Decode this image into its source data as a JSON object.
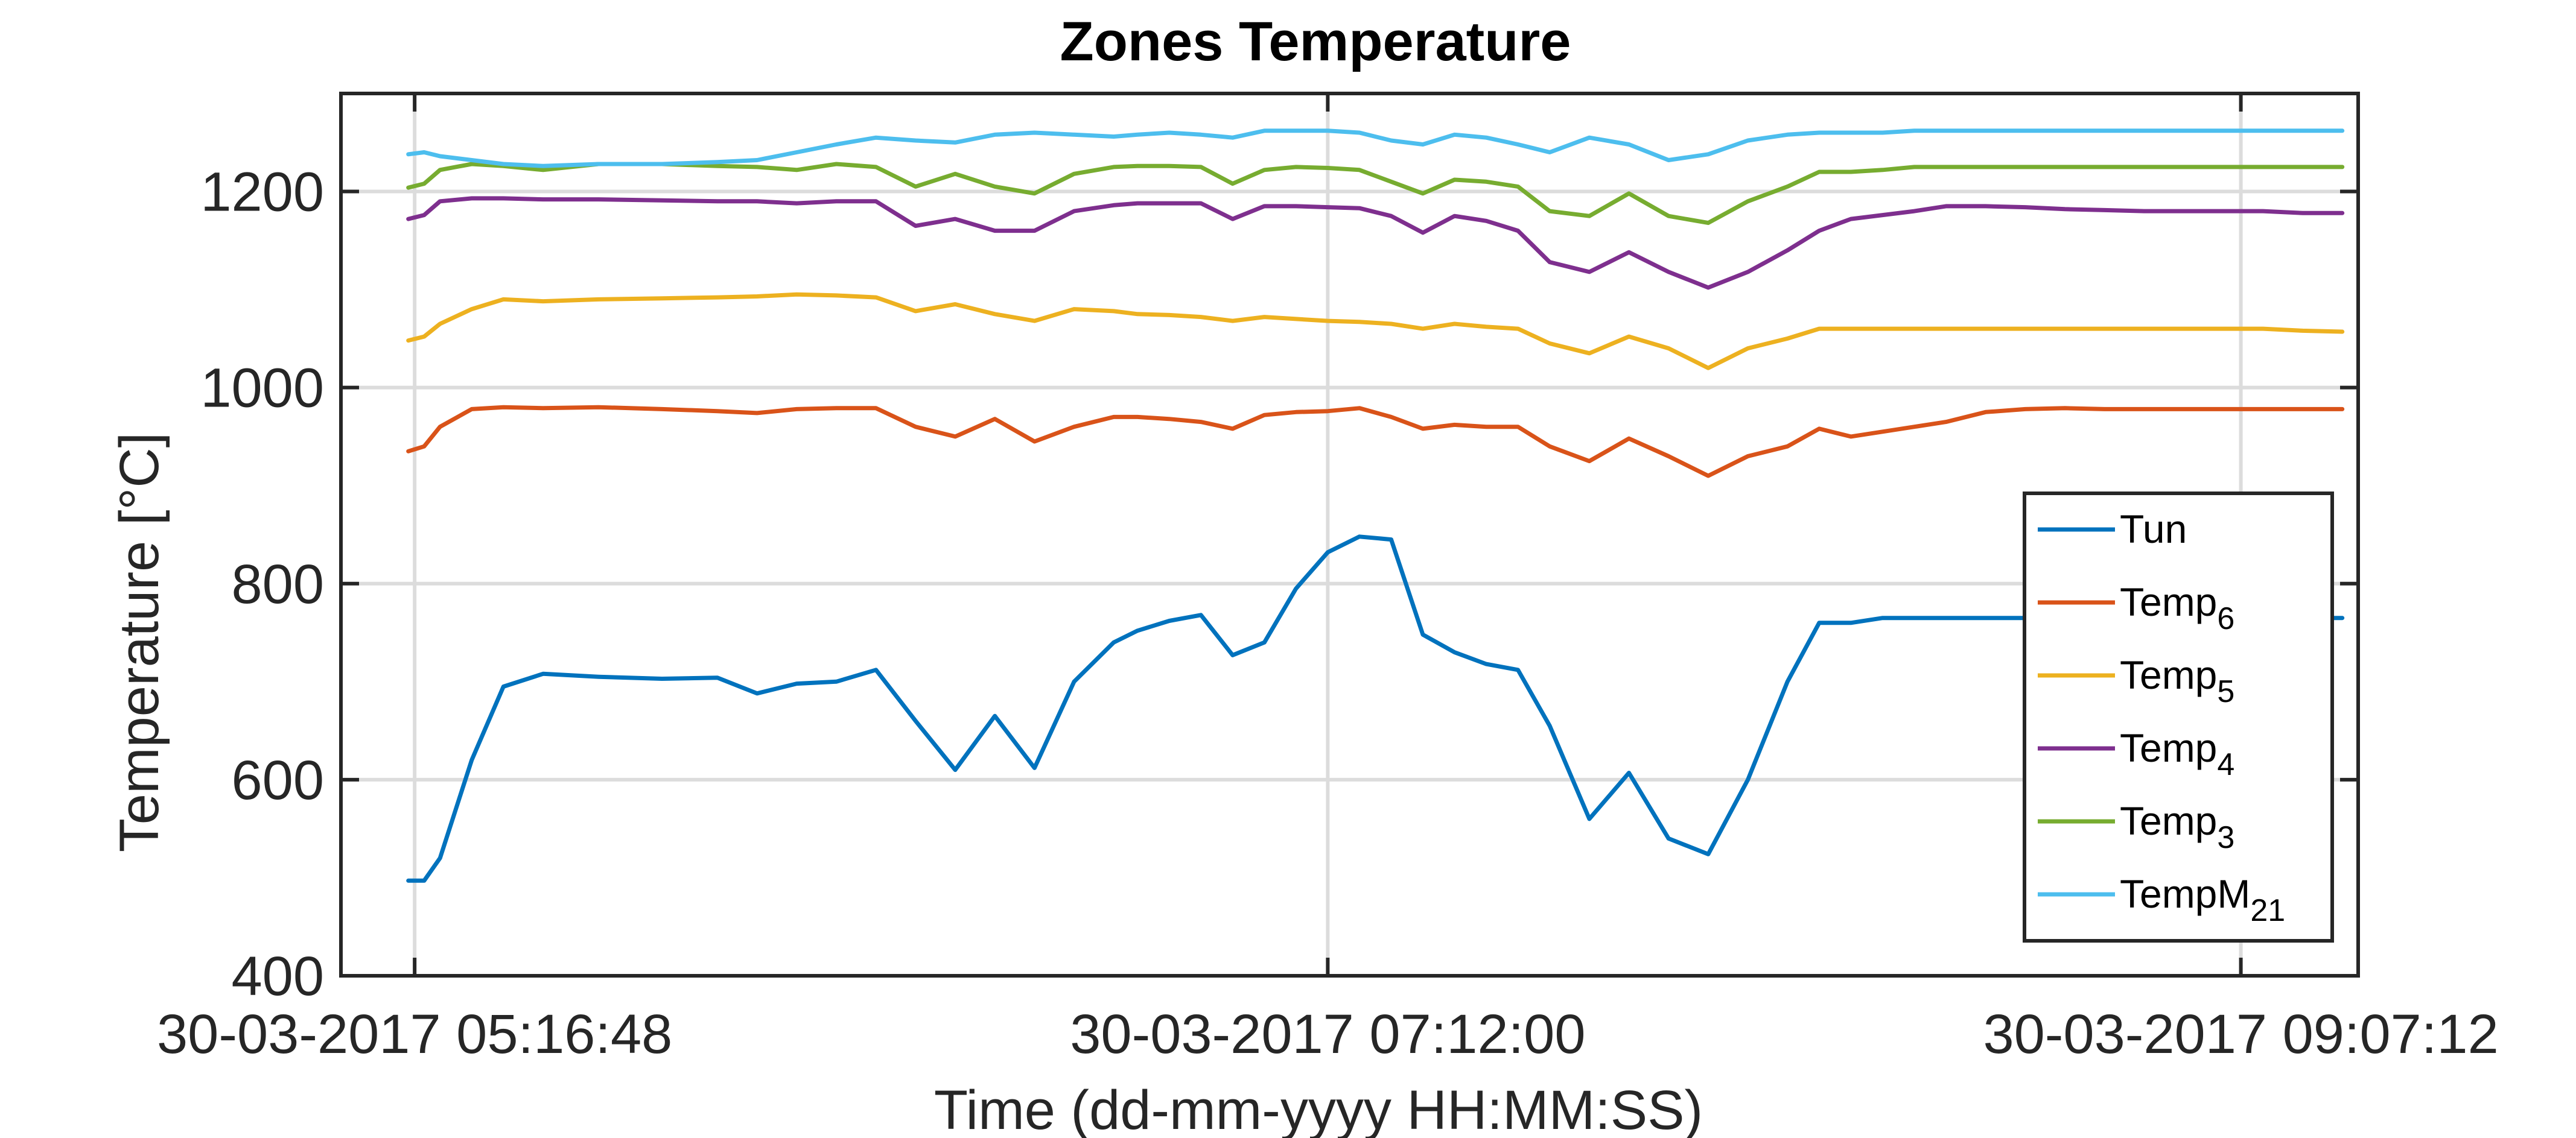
{
  "chart_data": {
    "type": "line",
    "title": "Zones Temperature",
    "xlabel": "Time (dd-mm-yyyy HH:MM:SS)",
    "ylabel": "Temperature [°C]",
    "xlim": [
      "30-03-2017 05:07:30",
      "30-03-2017 09:22:00"
    ],
    "ylim": [
      400,
      1300
    ],
    "x_ticks": [
      {
        "time": "05:16:48",
        "label": "30-03-2017 05:16:48"
      },
      {
        "time": "07:12:00",
        "label": "30-03-2017 07:12:00"
      },
      {
        "time": "09:07:12",
        "label": "30-03-2017 09:07:12"
      }
    ],
    "y_ticks": [
      400,
      600,
      800,
      1000,
      1200
    ],
    "grid": true,
    "legend_position": "bottom-right",
    "x": [
      "05:16:00",
      "05:18:00",
      "05:20:00",
      "05:24:00",
      "05:28:00",
      "05:33:00",
      "05:40:00",
      "05:48:00",
      "05:55:00",
      "06:00:00",
      "06:05:00",
      "06:10:00",
      "06:15:00",
      "06:20:00",
      "06:25:00",
      "06:30:00",
      "06:35:00",
      "06:40:00",
      "06:45:00",
      "06:48:00",
      "06:52:00",
      "06:56:00",
      "07:00:00",
      "07:04:00",
      "07:08:00",
      "07:12:00",
      "07:16:00",
      "07:20:00",
      "07:24:00",
      "07:28:00",
      "07:32:00",
      "07:36:00",
      "07:40:00",
      "07:45:00",
      "07:50:00",
      "07:55:00",
      "08:00:00",
      "08:05:00",
      "08:10:00",
      "08:14:00",
      "08:18:00",
      "08:22:00",
      "08:26:00",
      "08:30:00",
      "08:35:00",
      "08:40:00",
      "08:45:00",
      "08:50:00",
      "08:55:00",
      "09:00:00",
      "09:05:00",
      "09:10:00",
      "09:15:00",
      "09:20:00"
    ],
    "series": [
      {
        "name": "Tun",
        "sub": "",
        "color": "#0072BD",
        "values": [
          497,
          497,
          520,
          620,
          695,
          708,
          705,
          703,
          704,
          688,
          698,
          700,
          712,
          660,
          610,
          665,
          612,
          700,
          740,
          752,
          762,
          768,
          727,
          740,
          795,
          832,
          848,
          845,
          748,
          730,
          718,
          712,
          655,
          560,
          607,
          540,
          524,
          600,
          700,
          760,
          760,
          765,
          765,
          765,
          765,
          765,
          765,
          765,
          765,
          765,
          765,
          765,
          765,
          765
        ]
      },
      {
        "name": "Temp",
        "sub": "6",
        "color": "#D95319",
        "values": [
          935,
          940,
          960,
          978,
          980,
          979,
          980,
          978,
          976,
          974,
          978,
          979,
          979,
          960,
          950,
          968,
          945,
          960,
          970,
          970,
          968,
          965,
          958,
          972,
          975,
          976,
          979,
          970,
          958,
          962,
          960,
          960,
          940,
          925,
          948,
          930,
          910,
          930,
          940,
          958,
          950,
          955,
          960,
          965,
          975,
          978,
          979,
          978,
          978,
          978,
          978,
          978,
          978,
          978
        ]
      },
      {
        "name": "Temp",
        "sub": "5",
        "color": "#EDB120",
        "values": [
          1048,
          1052,
          1065,
          1080,
          1090,
          1088,
          1090,
          1091,
          1092,
          1093,
          1095,
          1094,
          1092,
          1078,
          1085,
          1075,
          1068,
          1080,
          1078,
          1075,
          1074,
          1072,
          1068,
          1072,
          1070,
          1068,
          1067,
          1065,
          1060,
          1065,
          1062,
          1060,
          1045,
          1035,
          1052,
          1040,
          1020,
          1040,
          1050,
          1060,
          1060,
          1060,
          1060,
          1060,
          1060,
          1060,
          1060,
          1060,
          1060,
          1060,
          1060,
          1060,
          1058,
          1057
        ]
      },
      {
        "name": "Temp",
        "sub": "4",
        "color": "#7E2F8E",
        "values": [
          1172,
          1176,
          1190,
          1193,
          1193,
          1192,
          1192,
          1191,
          1190,
          1190,
          1188,
          1190,
          1190,
          1165,
          1172,
          1160,
          1160,
          1180,
          1186,
          1188,
          1188,
          1188,
          1172,
          1185,
          1185,
          1184,
          1183,
          1175,
          1158,
          1175,
          1170,
          1160,
          1128,
          1118,
          1138,
          1118,
          1102,
          1118,
          1140,
          1160,
          1172,
          1176,
          1180,
          1185,
          1185,
          1184,
          1182,
          1181,
          1180,
          1180,
          1180,
          1180,
          1178,
          1178
        ]
      },
      {
        "name": "Temp",
        "sub": "3",
        "color": "#77AC30",
        "values": [
          1204,
          1208,
          1222,
          1228,
          1226,
          1222,
          1228,
          1228,
          1226,
          1225,
          1222,
          1228,
          1225,
          1205,
          1218,
          1205,
          1198,
          1218,
          1225,
          1226,
          1226,
          1225,
          1208,
          1222,
          1225,
          1224,
          1222,
          1210,
          1198,
          1212,
          1210,
          1205,
          1180,
          1175,
          1198,
          1175,
          1168,
          1190,
          1205,
          1220,
          1220,
          1222,
          1225,
          1225,
          1225,
          1225,
          1225,
          1225,
          1225,
          1225,
          1225,
          1225,
          1225,
          1225
        ]
      },
      {
        "name": "TempM",
        "sub": "21",
        "color": "#4DBEEE",
        "values": [
          1238,
          1240,
          1236,
          1232,
          1228,
          1226,
          1228,
          1228,
          1230,
          1232,
          1240,
          1248,
          1255,
          1252,
          1250,
          1258,
          1260,
          1258,
          1256,
          1258,
          1260,
          1258,
          1255,
          1262,
          1262,
          1262,
          1260,
          1252,
          1248,
          1258,
          1255,
          1248,
          1240,
          1255,
          1248,
          1232,
          1238,
          1252,
          1258,
          1260,
          1260,
          1260,
          1262,
          1262,
          1262,
          1262,
          1262,
          1262,
          1262,
          1262,
          1262,
          1262,
          1262,
          1262
        ]
      }
    ]
  }
}
